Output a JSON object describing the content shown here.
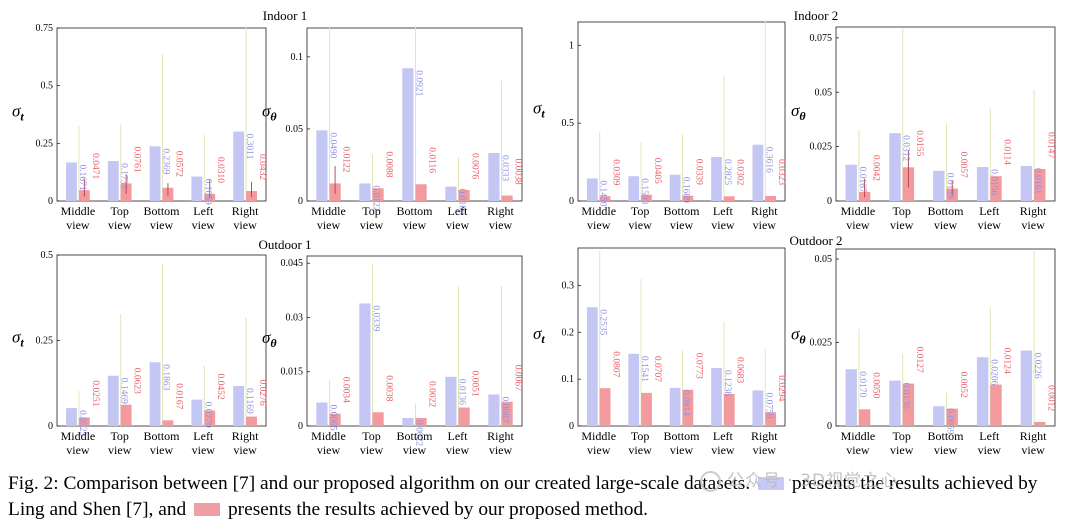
{
  "colors": {
    "ours": "#f29a9e",
    "ling": "#c4c6f4",
    "ours_label": "#ee5b63",
    "ling_label": "#8d90e6",
    "whisker": "#e2e6b4"
  },
  "row_titles": [
    "Indoor 1",
    "Indoor 2",
    "Outdoor 1",
    "Outdoor 2"
  ],
  "chart_data": [
    {
      "type": "bar",
      "title": "Indoor 1",
      "ylabel": "σt",
      "categories": [
        "Middle view",
        "Top view",
        "Bottom view",
        "Left view",
        "Right view"
      ],
      "series": [
        {
          "name": "Ling and Shen [7]",
          "values": [
            0.1671,
            0.1731,
            0.2369,
            0.1059,
            0.3011
          ],
          "errors": [
            0.16,
            0.16,
            0.4,
            0.18,
            0.48
          ]
        },
        {
          "name": "Ours",
          "values": [
            0.0471,
            0.0761,
            0.0572,
            0.031,
            0.0432
          ],
          "errors": [
            0.05,
            0.04,
            0.02,
            0.06,
            0.04
          ]
        }
      ],
      "ylim": [
        0,
        0.75
      ],
      "yticks": [
        0,
        0.25,
        0.5,
        0.75
      ],
      "ytick_labels": [
        "0",
        "0.25",
        "0.5",
        "0.75"
      ]
    },
    {
      "type": "bar",
      "title": "",
      "ylabel": "σθ",
      "categories": [
        "Middle view",
        "Top view",
        "Bottom view",
        "Left view",
        "Right view"
      ],
      "series": [
        {
          "name": "Ling and Shen [7]",
          "values": [
            0.049,
            0.0122,
            0.0921,
            0.01,
            0.0333
          ],
          "errors": [
            0.085,
            0.02,
            0.07,
            0.02,
            0.05
          ]
        },
        {
          "name": "Ours",
          "values": [
            0.0122,
            0.0088,
            0.0116,
            0.0076,
            0.0038
          ],
          "errors": [
            0.012,
            0.0,
            0.0,
            0.0,
            0.0
          ]
        }
      ],
      "ylim": [
        0,
        0.12
      ],
      "yticks": [
        0,
        0.05,
        0.1
      ],
      "ytick_labels": [
        "0",
        "0.05",
        "0.1"
      ]
    },
    {
      "type": "bar",
      "title": "",
      "ylabel": "σt",
      "categories": [
        "Middle view",
        "Top view",
        "Bottom view",
        "Left view",
        "Right view"
      ],
      "series": [
        {
          "name": "Ling and Shen [7]",
          "values": [
            0.145,
            0.1593,
            0.1689,
            0.2825,
            0.3616
          ],
          "errors": [
            0.3,
            0.22,
            0.26,
            0.52,
            0.8
          ]
        },
        {
          "name": "Ours",
          "values": [
            0.0309,
            0.0405,
            0.0339,
            0.0302,
            0.0323
          ],
          "errors": [
            0.0,
            0.0,
            0.0,
            0.0,
            0.0
          ]
        }
      ],
      "ylim": [
        0,
        1.15
      ],
      "yticks": [
        0,
        0.5,
        1
      ],
      "ytick_labels": [
        "0",
        "0.5",
        "1"
      ]
    },
    {
      "type": "bar",
      "title": "Indoor 2",
      "ylabel": "σθ",
      "categories": [
        "Middle view",
        "Top view",
        "Bottom view",
        "Left view",
        "Right view"
      ],
      "series": [
        {
          "name": "Ling and Shen [7]",
          "values": [
            0.0167,
            0.0312,
            0.0139,
            0.0156,
            0.0161
          ],
          "errors": [
            0.016,
            0.048,
            0.022,
            0.027,
            0.035
          ]
        },
        {
          "name": "Ours",
          "values": [
            0.0042,
            0.0155,
            0.0057,
            0.0114,
            0.0147
          ],
          "errors": [
            0.006,
            0.008,
            0.004,
            0.0,
            0.0
          ]
        }
      ],
      "ylim": [
        0,
        0.08
      ],
      "yticks": [
        0,
        0.025,
        0.05,
        0.075
      ],
      "ytick_labels": [
        "0",
        "0.025",
        "0.05",
        "0.075"
      ]
    },
    {
      "type": "bar",
      "title": "Outdoor 1",
      "ylabel": "σt",
      "categories": [
        "Middle view",
        "Top view",
        "Bottom view",
        "Left view",
        "Right view"
      ],
      "series": [
        {
          "name": "Ling and Shen [7]",
          "values": [
            0.0523,
            0.1469,
            0.1863,
            0.077,
            0.1169
          ],
          "errors": [
            0.05,
            0.18,
            0.29,
            0.1,
            0.2
          ]
        },
        {
          "name": "Ours",
          "values": [
            0.0251,
            0.0623,
            0.0167,
            0.0452,
            0.0276
          ],
          "errors": [
            0.0,
            0.0,
            0.0,
            0.0,
            0.0
          ]
        }
      ],
      "ylim": [
        0,
        0.5
      ],
      "yticks": [
        0,
        0.25,
        0.5
      ],
      "ytick_labels": [
        "0",
        "0.25",
        "0.5"
      ]
    },
    {
      "type": "bar",
      "title": "",
      "ylabel": "σθ",
      "categories": [
        "Middle view",
        "Top view",
        "Bottom view",
        "Left view",
        "Right view"
      ],
      "series": [
        {
          "name": "Ling and Shen [7]",
          "values": [
            0.0065,
            0.0339,
            0.0022,
            0.0136,
            0.0087
          ],
          "errors": [
            0.006,
            0.011,
            0.004,
            0.025,
            0.03
          ]
        },
        {
          "name": "Ours",
          "values": [
            0.0034,
            0.0038,
            0.0022,
            0.0051,
            0.0067
          ],
          "errors": [
            0.0,
            0.0,
            0.0,
            0.0,
            0.0
          ]
        }
      ],
      "ylim": [
        0,
        0.047
      ],
      "yticks": [
        0,
        0.015,
        0.03,
        0.045
      ],
      "ytick_labels": [
        "0",
        "0.015",
        "0.03",
        "0.045"
      ]
    },
    {
      "type": "bar",
      "title": "Outdoor 2",
      "ylabel": "σt",
      "categories": [
        "Middle view",
        "Top view",
        "Bottom view",
        "Left view",
        "Right view"
      ],
      "series": [
        {
          "name": "Ling and Shen [7]",
          "values": [
            0.2535,
            0.1541,
            0.0814,
            0.1238,
            0.0759
          ],
          "errors": [
            0.12,
            0.16,
            0.08,
            0.1,
            0.09
          ]
        },
        {
          "name": "Ours",
          "values": [
            0.0807,
            0.0707,
            0.0773,
            0.0683,
            0.0294
          ],
          "errors": [
            0.0,
            0.0,
            0.0,
            0.0,
            0.0
          ]
        }
      ],
      "ylim": [
        0,
        0.38
      ],
      "yticks": [
        0,
        0.1,
        0.2,
        0.3
      ],
      "ytick_labels": [
        "0",
        "0.1",
        "0.2",
        "0.3"
      ]
    },
    {
      "type": "bar",
      "title": "",
      "ylabel": "σθ",
      "categories": [
        "Middle view",
        "Top view",
        "Bottom view",
        "Left view",
        "Right view"
      ],
      "series": [
        {
          "name": "Ling and Shen [7]",
          "values": [
            0.017,
            0.0136,
            0.0059,
            0.0206,
            0.0226
          ],
          "errors": [
            0.012,
            0.008,
            0.004,
            0.015,
            0.03
          ]
        },
        {
          "name": "Ours",
          "values": [
            0.005,
            0.0127,
            0.0052,
            0.0124,
            0.0012
          ],
          "errors": [
            0.0,
            0.0,
            0.0,
            0.0,
            0.0
          ]
        }
      ],
      "ylim": [
        0,
        0.053
      ],
      "yticks": [
        0,
        0.025,
        0.05
      ],
      "ytick_labels": [
        "0",
        "0.025",
        "0.05"
      ]
    }
  ],
  "caption": {
    "part1": "Fig. 2: Comparison between [7] and our proposed algorithm on our created large-scale datasets.",
    "part2": "presents the results achieved by Ling and Shen [7], and",
    "part3": "presents the results achieved by our proposed method."
  },
  "watermark": {
    "text": "公众号 · 3D视觉之心"
  }
}
